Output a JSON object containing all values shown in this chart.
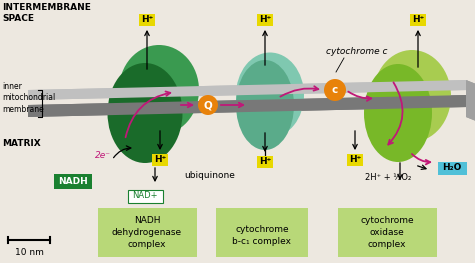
{
  "bg_color": "#ede8e0",
  "membrane_top_color": "#b8b8b8",
  "membrane_mid_color": "#888888",
  "membrane_bot_color": "#707070",
  "complex1_dark": "#1a6b2a",
  "complex1_light": "#3a9a50",
  "complex2_dark": "#5aab8a",
  "complex2_light": "#80c8a8",
  "complex3_dark": "#78b828",
  "complex3_light": "#a8cc50",
  "ubiquinone_color": "#e8820a",
  "cytc_color": "#e8820a",
  "hplus_bg": "#e8d800",
  "h2o_bg": "#50c0d8",
  "nadh_bg": "#1a8030",
  "nad_border": "#1a8030",
  "arrow_color": "#c01878",
  "label_box_color": "#b8d878",
  "title_text": "INTERMEMBRANE\nSPACE",
  "matrix_text": "MATRIX",
  "inner_membrane_text": "inner\nmitochondrial\nmembrane",
  "scale_text": "10 nm",
  "nadh_text": "NADH",
  "nad_text": "NAD+",
  "ubiquinone_text": "ubiquinone",
  "cytc_label": "cytochrome c",
  "h2o_text": "H₂O",
  "reaction_text": "2H⁺ + ½O₂",
  "electrons_text": "2e⁻",
  "label1_text": "NADH\ndehydrogenase\ncomplex",
  "label2_text": "cytochrome\nb-c₁ complex",
  "label3_text": "cytochrome\noxidase\ncomplex"
}
